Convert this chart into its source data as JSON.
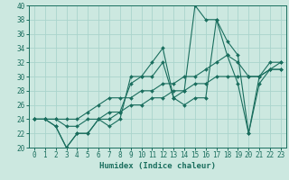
{
  "xlabel": "Humidex (Indice chaleur)",
  "bg_color": "#cce8e0",
  "grid_color": "#aad4cc",
  "line_color": "#1a6e5e",
  "xlim": [
    -0.5,
    23.5
  ],
  "ylim": [
    20,
    40
  ],
  "xticks": [
    0,
    1,
    2,
    3,
    4,
    5,
    6,
    7,
    8,
    9,
    10,
    11,
    12,
    13,
    14,
    15,
    16,
    17,
    18,
    19,
    20,
    21,
    22,
    23
  ],
  "yticks": [
    20,
    22,
    24,
    26,
    28,
    30,
    32,
    34,
    36,
    38,
    40
  ],
  "series": [
    {
      "x": [
        0,
        1,
        2,
        3,
        4,
        5,
        6,
        7,
        8,
        9,
        10,
        11,
        12,
        13,
        14,
        15,
        16,
        17,
        18,
        19,
        20,
        21,
        22,
        23
      ],
      "y": [
        24,
        24,
        23,
        20,
        22,
        22,
        24,
        23,
        24,
        30,
        30,
        30,
        32,
        27,
        26,
        27,
        27,
        38,
        33,
        29,
        22,
        29,
        31,
        31
      ]
    },
    {
      "x": [
        0,
        1,
        2,
        3,
        4,
        5,
        6,
        7,
        8,
        9,
        10,
        11,
        12,
        13,
        14,
        15,
        16,
        17,
        18,
        19,
        20,
        21,
        22,
        23
      ],
      "y": [
        24,
        24,
        23,
        20,
        22,
        22,
        24,
        24,
        25,
        29,
        30,
        32,
        34,
        27,
        28,
        40,
        38,
        38,
        35,
        33,
        22,
        30,
        32,
        32
      ]
    },
    {
      "x": [
        0,
        1,
        2,
        3,
        4,
        5,
        6,
        7,
        8,
        9,
        10,
        11,
        12,
        13,
        14,
        15,
        16,
        17,
        18,
        19,
        20,
        21,
        22,
        23
      ],
      "y": [
        24,
        24,
        24,
        24,
        24,
        25,
        26,
        27,
        27,
        27,
        28,
        28,
        29,
        29,
        30,
        30,
        31,
        32,
        33,
        32,
        30,
        30,
        31,
        32
      ]
    },
    {
      "x": [
        0,
        1,
        2,
        3,
        4,
        5,
        6,
        7,
        8,
        9,
        10,
        11,
        12,
        13,
        14,
        15,
        16,
        17,
        18,
        19,
        20,
        21,
        22,
        23
      ],
      "y": [
        24,
        24,
        24,
        23,
        23,
        24,
        24,
        25,
        25,
        26,
        26,
        27,
        27,
        28,
        28,
        29,
        29,
        30,
        30,
        30,
        30,
        30,
        31,
        31
      ]
    }
  ],
  "tick_fontsize": 5.5,
  "xlabel_fontsize": 6.5
}
